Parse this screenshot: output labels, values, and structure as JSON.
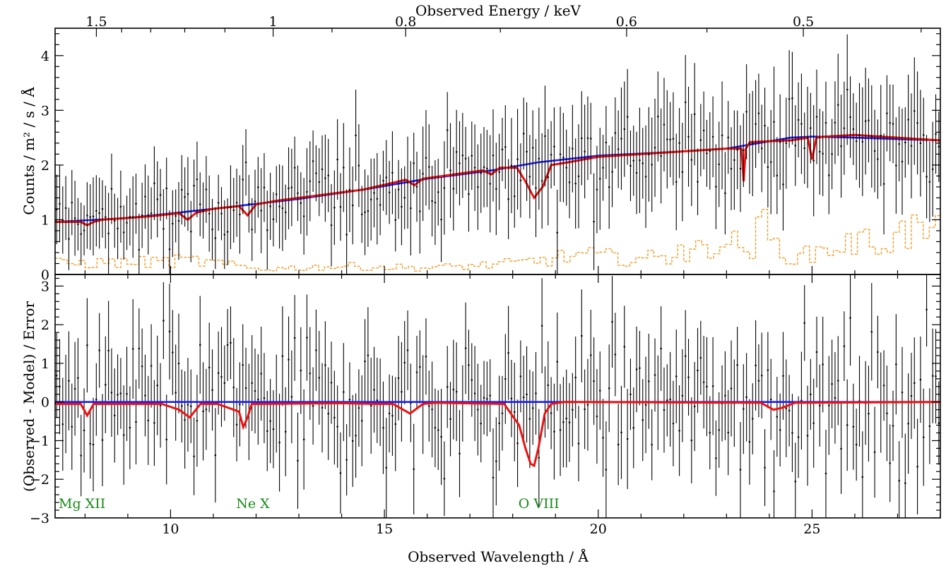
{
  "chart_data": [
    {
      "type": "line",
      "panel": "spectrum",
      "top_axis_label": "Observed Energy / keV",
      "top_tick_labels": [
        "1.5",
        "1",
        "0.8",
        "0.6",
        "0.5"
      ],
      "top_tick_energies_keV": [
        1.5,
        1.0,
        0.8,
        0.6,
        0.5
      ],
      "ylabel": "Counts / m² / s / Å",
      "xlim": [
        7.3,
        28.0
      ],
      "ylim": [
        0,
        4.5
      ],
      "yticks": [
        0,
        1,
        2,
        3,
        4
      ],
      "grid": false,
      "series": [
        {
          "color": "#1a1aff",
          "style": "solid",
          "x": [
            7.3,
            9,
            11,
            13,
            14.5,
            16,
            17.5,
            18.6,
            19.2,
            20,
            22,
            23,
            24.5,
            25,
            26,
            28
          ],
          "y": [
            0.96,
            1.03,
            1.2,
            1.38,
            1.55,
            1.75,
            1.9,
            2.05,
            2.1,
            2.17,
            2.25,
            2.3,
            2.5,
            2.52,
            2.5,
            2.45
          ]
        },
        {
          "color": "#ee1111",
          "style": "solid",
          "x": [
            7.3,
            7.9,
            8.05,
            8.2,
            8.4,
            9.5,
            10.2,
            10.4,
            10.6,
            11.0,
            11.6,
            11.8,
            12.0,
            12.5,
            14.5,
            15.5,
            15.7,
            15.9,
            17.3,
            17.5,
            17.7,
            18.1,
            18.3,
            18.5,
            18.7,
            18.9,
            19.3,
            20,
            22,
            23,
            23.35,
            23.4,
            23.45,
            23.55,
            24.5,
            24.9,
            25.0,
            25.1,
            25.3,
            26,
            28
          ],
          "y": [
            0.96,
            0.96,
            0.9,
            0.96,
            1.0,
            1.06,
            1.12,
            1.0,
            1.13,
            1.2,
            1.25,
            1.08,
            1.28,
            1.35,
            1.55,
            1.73,
            1.63,
            1.75,
            1.9,
            1.83,
            1.95,
            1.95,
            1.7,
            1.4,
            1.6,
            2.0,
            2.05,
            2.15,
            2.25,
            2.3,
            2.3,
            1.7,
            2.3,
            2.42,
            2.45,
            2.5,
            2.1,
            2.5,
            2.52,
            2.55,
            2.45
          ]
        },
        {
          "color": "#f0a030",
          "style": "dashed-step",
          "x": [
            7.3,
            9,
            10.5,
            12,
            14,
            16,
            18,
            19.5,
            20.5,
            21.7,
            21.8,
            22.0,
            22.7,
            23.5,
            23.8,
            24.1,
            24.6,
            25.6,
            26.5,
            27.3,
            28
          ],
          "y": [
            0.2,
            0.22,
            0.25,
            0.1,
            0.15,
            0.12,
            0.2,
            0.35,
            0.3,
            0.3,
            0.95,
            0.3,
            0.65,
            0.45,
            0.9,
            0.5,
            0.3,
            0.55,
            0.6,
            0.8,
            0.7
          ]
        }
      ],
      "data_points": {
        "x_range": [
          7.3,
          28.0
        ],
        "count": 290,
        "typical_error_bar": 0.6
      }
    },
    {
      "type": "line",
      "panel": "residuals",
      "xlabel": "Observed Wavelength / Å",
      "ylabel": "(Observed - Model) / Error",
      "xlim": [
        7.3,
        28.0
      ],
      "ylim": [
        -3,
        3.3
      ],
      "xticks": [
        10,
        15,
        20,
        25
      ],
      "yticks": [
        -3,
        -2,
        -1,
        0,
        1,
        2,
        3
      ],
      "grid": false,
      "series": [
        {
          "color": "#1a1aff",
          "style": "solid",
          "x": [
            7.3,
            28.0
          ],
          "y": [
            0,
            0
          ]
        },
        {
          "color": "#ee1111",
          "style": "solid",
          "x": [
            7.3,
            7.9,
            8.05,
            8.2,
            8.6,
            9.8,
            10.2,
            10.45,
            10.7,
            11.1,
            11.6,
            11.7,
            11.8,
            11.9,
            12.1,
            14.0,
            14.8,
            15.2,
            15.6,
            15.9,
            16.2,
            17.8,
            18.15,
            18.3,
            18.42,
            18.5,
            18.6,
            18.75,
            18.9,
            19.2,
            23.8,
            24.1,
            24.3,
            24.6,
            28.0
          ],
          "y": [
            -0.05,
            -0.05,
            -0.35,
            -0.05,
            -0.05,
            -0.05,
            -0.2,
            -0.4,
            -0.05,
            -0.05,
            -0.25,
            -0.65,
            -0.4,
            -0.05,
            -0.05,
            -0.03,
            -0.05,
            -0.05,
            -0.3,
            -0.05,
            -0.02,
            -0.05,
            -0.6,
            -1.2,
            -1.6,
            -1.65,
            -1.2,
            -0.3,
            -0.05,
            0,
            -0.02,
            -0.2,
            -0.15,
            -0.02,
            0
          ]
        }
      ],
      "annotations": [
        {
          "text": "Mg XII",
          "x": 7.35,
          "y": -2.6
        },
        {
          "text": "Ne X",
          "x": 11.5,
          "y": -2.6
        },
        {
          "text": "O VIII",
          "x": 18.1,
          "y": -2.6
        }
      ],
      "data_points": {
        "x_range": [
          7.3,
          28.0
        ],
        "count": 290,
        "typical_error_bar": 1.0
      }
    }
  ]
}
